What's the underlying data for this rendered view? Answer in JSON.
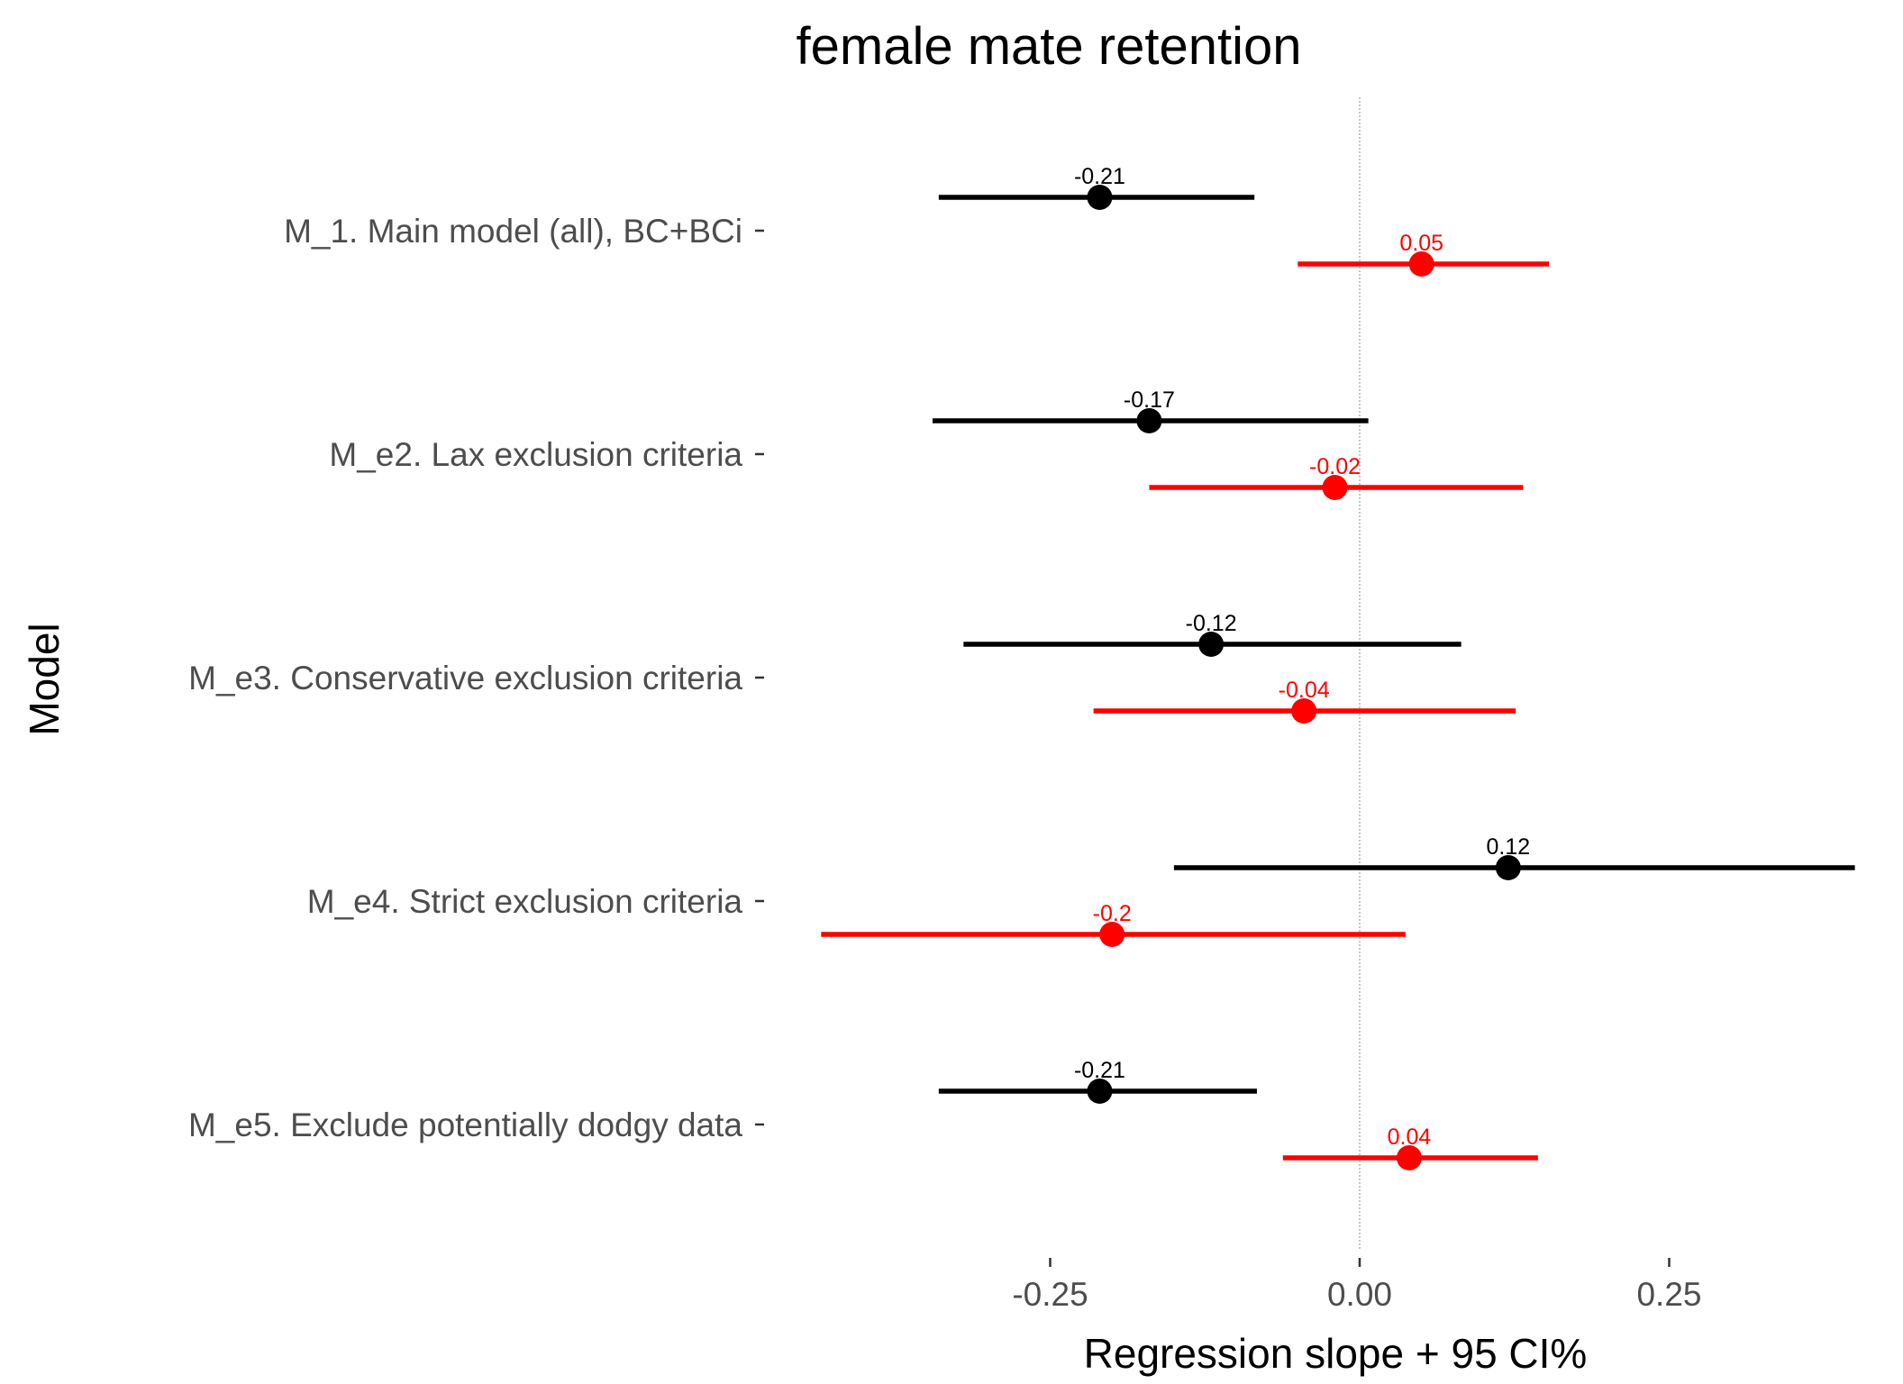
{
  "chart_data": {
    "type": "scatter",
    "subtype": "forest-plot-with-confidence-intervals",
    "title": "female mate retention",
    "xlabel": "Regression slope + 95 CI%",
    "ylabel": "Model",
    "xlim": [
      -0.5,
      0.42
    ],
    "x_ticks": [
      -0.25,
      0.0,
      0.25
    ],
    "x_tick_labels": [
      "-0.25",
      "0.00",
      "0.25"
    ],
    "reference_line_x": 0,
    "grid": false,
    "legend": "none",
    "categories": [
      "M_1. Main model (all), BC+BCi",
      "M_e2. Lax exclusion criteria",
      "M_e3. Conservative exclusion criteria",
      "M_e4. Strict exclusion criteria",
      "M_e5. Exclude potentially dodgy data"
    ],
    "series": [
      {
        "color": "#000000",
        "estimates": [
          -0.21,
          -0.17,
          -0.12,
          0.12,
          -0.21
        ],
        "labels": [
          "-0.21",
          "-0.17",
          "-0.12",
          "0.12",
          "-0.21"
        ],
        "ci_lower": [
          -0.34,
          -0.345,
          -0.32,
          -0.15,
          -0.34
        ],
        "ci_upper": [
          -0.085,
          0.007,
          0.082,
          0.4,
          -0.083
        ]
      },
      {
        "color": "#ff0000",
        "estimates": [
          0.05,
          -0.02,
          -0.045,
          -0.2,
          0.04
        ],
        "labels": [
          "0.05",
          "-0.02",
          "-0.04",
          "-0.2",
          "0.04"
        ],
        "ci_lower": [
          -0.05,
          -0.17,
          -0.215,
          -0.435,
          -0.062
        ],
        "ci_upper": [
          0.153,
          0.132,
          0.126,
          0.037,
          0.144
        ]
      }
    ]
  }
}
